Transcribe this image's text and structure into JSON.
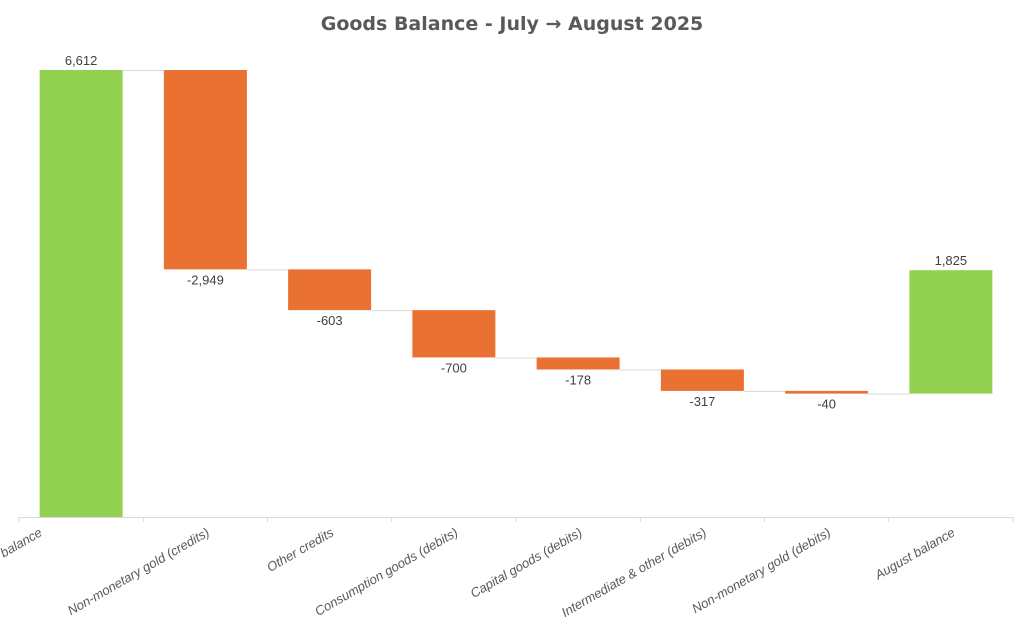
{
  "chart_data": {
    "type": "waterfall",
    "title": "Goods Balance - July → August 2025",
    "categories": [
      "July balance",
      "Non-monetary gold (credits)",
      "Other credits",
      "Consumption goods (debits)",
      "Capital goods (debits)",
      "Intermediate & other (debits)",
      "Non-monetary gold (debits)",
      "August balance"
    ],
    "values": [
      6612,
      -2949,
      -603,
      -700,
      -178,
      -317,
      -40,
      1825
    ],
    "kinds": [
      "total",
      "delta",
      "delta",
      "delta",
      "delta",
      "delta",
      "delta",
      "total"
    ],
    "labels": [
      "6,612",
      "-2,949",
      "-603",
      "-700",
      "-178",
      "-317",
      "-40",
      "1,825"
    ],
    "ylim": [
      0,
      6612
    ],
    "grid": false,
    "legend": "none",
    "colors": {
      "total": "#92D050",
      "decrease": "#E97132",
      "connector": "#D9D9D9",
      "axis": "#D9D9D9"
    }
  }
}
